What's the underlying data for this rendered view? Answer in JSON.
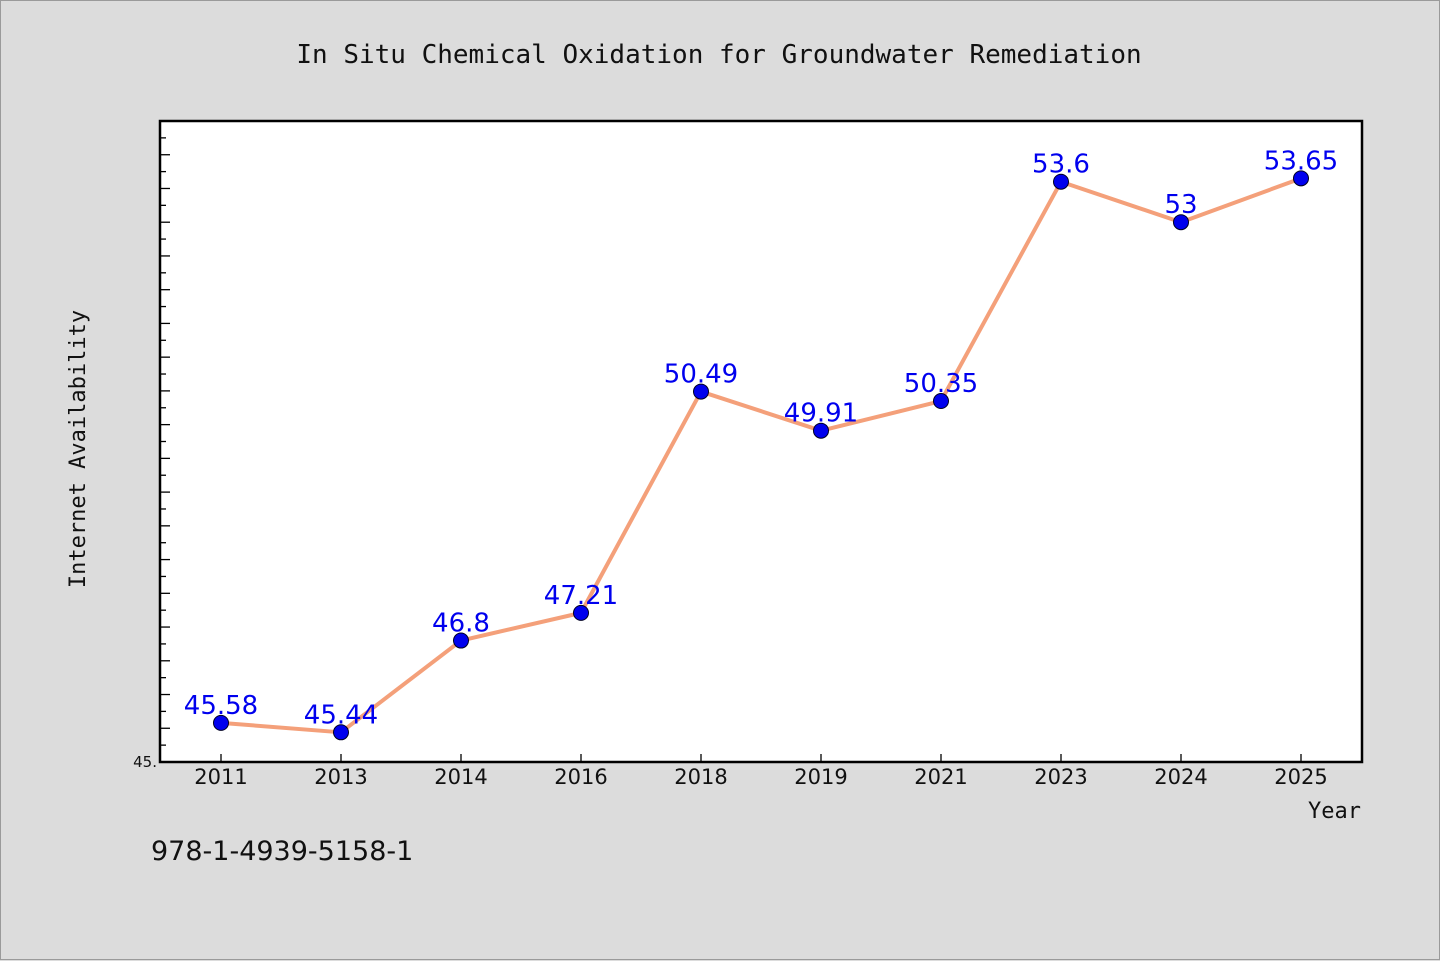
{
  "chart_data": {
    "type": "line",
    "title": "In Situ Chemical Oxidation for Groundwater Remediation",
    "xlabel": "Year",
    "ylabel": "Internet Availability",
    "categories": [
      "2011",
      "2013",
      "2014",
      "2016",
      "2018",
      "2019",
      "2021",
      "2023",
      "2024",
      "2025"
    ],
    "series": [
      {
        "values": [
          45.58,
          45.44,
          46.8,
          47.21,
          50.49,
          49.91,
          50.35,
          53.6,
          53.0,
          53.65
        ]
      }
    ],
    "data_labels": [
      "45.58",
      "45.44",
      "46.8",
      "47.21",
      "50.49",
      "49.91",
      "50.35",
      "53.6",
      "53",
      "53.65"
    ],
    "ylim": [
      45.0,
      54.5
    ],
    "y_tick_label": "45.",
    "grid": false,
    "legend": "none",
    "colors": {
      "line": "#f4a07a",
      "marker": "#0000ee",
      "label": "#0000ee",
      "background": "#dcdcdc",
      "plot_area": "#ffffff"
    }
  },
  "footer": {
    "isbn": "978-1-4939-5158-1"
  }
}
